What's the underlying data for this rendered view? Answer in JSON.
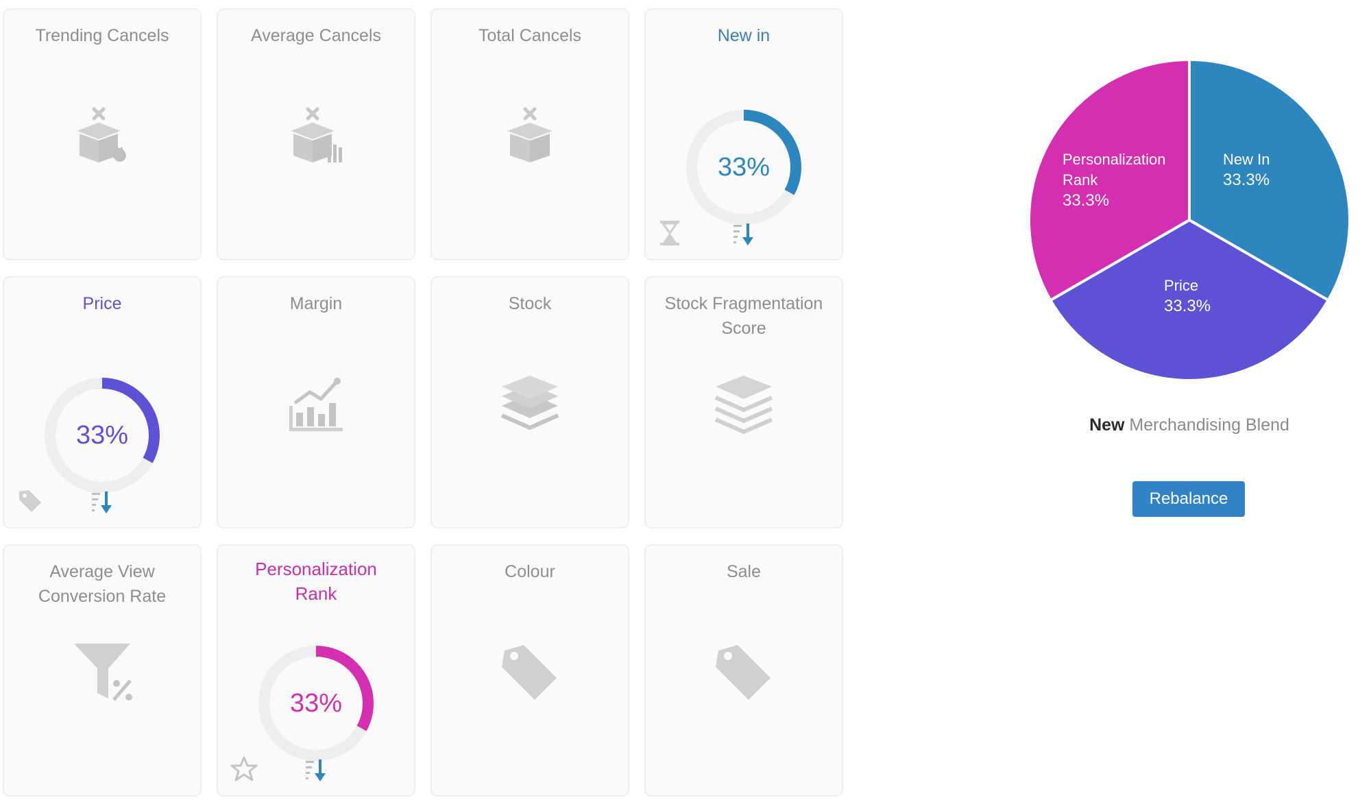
{
  "cards": {
    "trending_cancels": {
      "title": "Trending Cancels",
      "icon": "box-cancel-fire-icon"
    },
    "average_cancels": {
      "title": "Average Cancels",
      "icon": "box-cancel-chart-icon"
    },
    "total_cancels": {
      "title": "Total Cancels",
      "icon": "box-cancel-icon"
    },
    "new_in": {
      "title": "New in",
      "percent": "33%",
      "value": 0.33,
      "color": "#2e86bf",
      "icons": [
        "hourglass-icon",
        "sort-descending-icon"
      ]
    },
    "price": {
      "title": "Price",
      "percent": "33%",
      "value": 0.33,
      "color": "#5d52d6",
      "icons": [
        "price-tag-icon",
        "sort-descending-icon"
      ]
    },
    "margin": {
      "title": "Margin",
      "icon": "growth-chart-icon"
    },
    "stock": {
      "title": "Stock",
      "icon": "layers-icon"
    },
    "stock_fragmentation": {
      "title_line1": "Stock Fragmentation",
      "title_line2": "Score",
      "icon": "layers-outline-icon"
    },
    "avg_view_conversion": {
      "title_line1": "Average View",
      "title_line2": "Conversion Rate",
      "icon": "funnel-percent-icon"
    },
    "personalization_rank": {
      "title_line1": "Personalization",
      "title_line2": "Rank",
      "percent": "33%",
      "value": 0.33,
      "color": "#d42fb0",
      "icons": [
        "star-icon",
        "sort-descending-icon"
      ]
    },
    "colour": {
      "title": "Colour",
      "icon": "tag-icon"
    },
    "sale": {
      "title": "Sale",
      "icon": "tag-icon"
    }
  },
  "blend": {
    "chart_data": {
      "type": "pie",
      "slices": [
        {
          "name_line1": "New In",
          "name_line2": "",
          "label": "33.3%",
          "value": 33.3,
          "color": "#2e86bf"
        },
        {
          "name_line1": "Price",
          "name_line2": "",
          "label": "33.3%",
          "value": 33.3,
          "color": "#5d52d6"
        },
        {
          "name_line1": "Personalization",
          "name_line2": "Rank",
          "label": "33.3%",
          "value": 33.3,
          "color": "#d42fb0"
        }
      ]
    },
    "caption_bold": "New",
    "caption_rest": " Merchandising Blend",
    "button_label": "Rebalance"
  },
  "colors": {
    "card_bg": "#fafafa",
    "icon_gray": "#d0d0d0",
    "track_gray": "#eeeeee",
    "sort_blue": "#2e86bf"
  }
}
